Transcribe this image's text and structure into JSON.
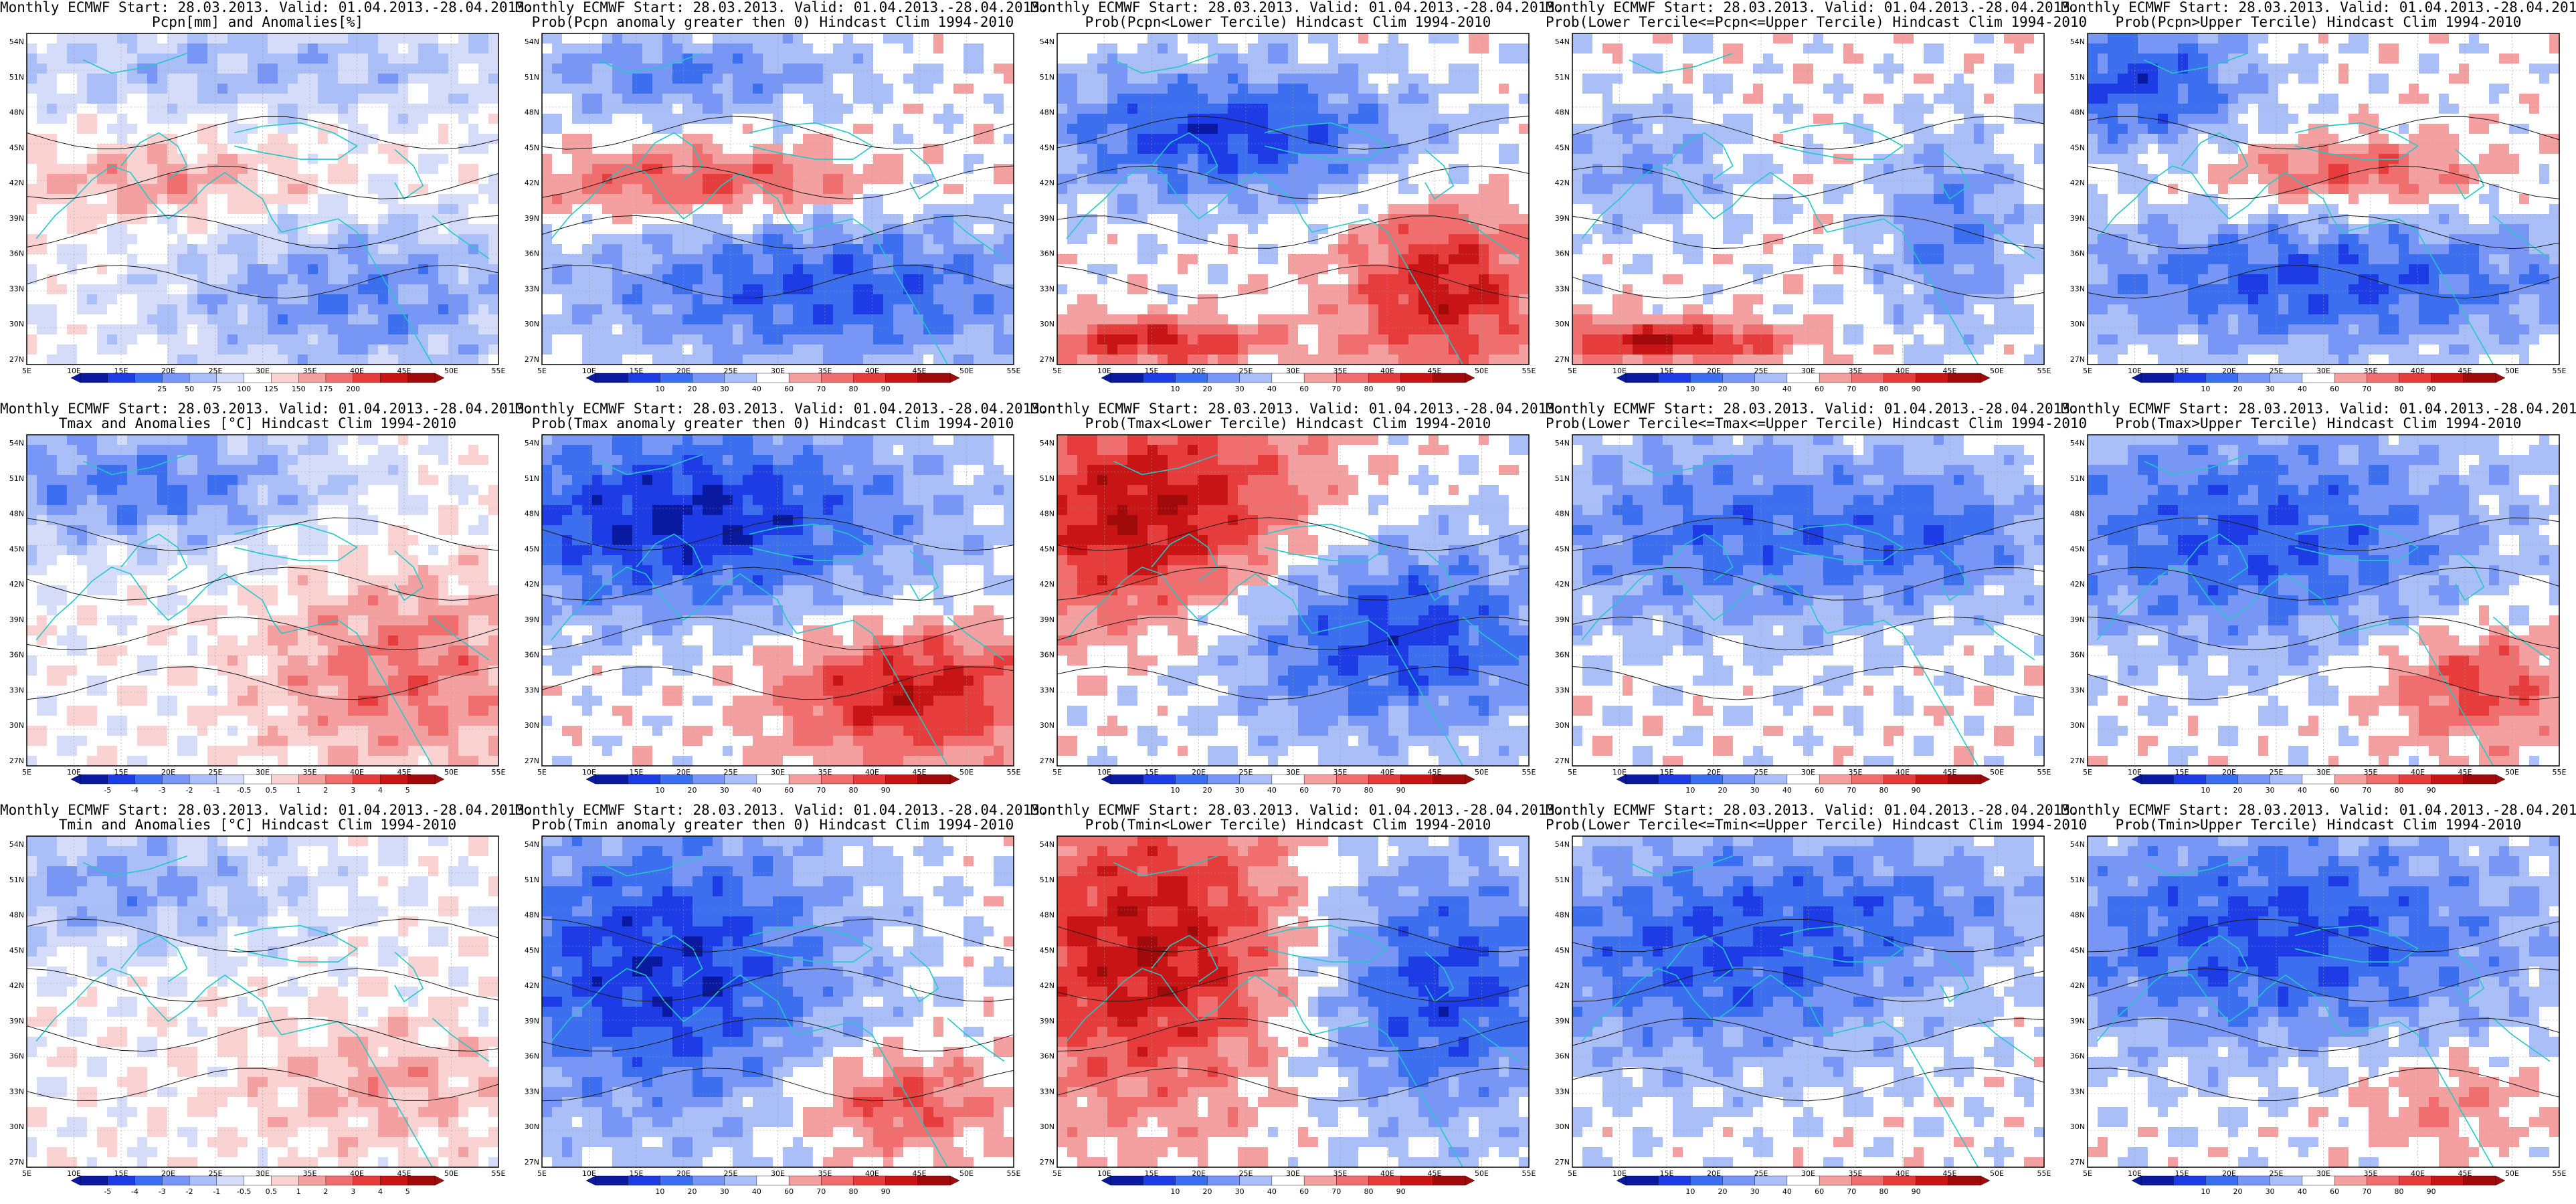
{
  "figure": {
    "prefix": "Monthly ECMWF Start: 28.03.2013. Valid: 01.04.2013.-28.04.2013."
  },
  "axes": {
    "lat_labels": [
      "54N",
      "51N",
      "48N",
      "45N",
      "42N",
      "39N",
      "36N",
      "33N",
      "30N",
      "27N"
    ],
    "lon_labels": [
      "5E",
      "10E",
      "15E",
      "20E",
      "25E",
      "30E",
      "35E",
      "40E",
      "45E",
      "50E",
      "55E"
    ]
  },
  "colorbars": {
    "pcpn_anom": {
      "ticks": [
        "25",
        "50",
        "75",
        "100",
        "125",
        "150",
        "175",
        "200"
      ],
      "colors": [
        "#0a1aa0",
        "#1e3ce6",
        "#3c6ef0",
        "#7896f5",
        "#aabef8",
        "#d4dcfa",
        "#ffffff",
        "#fad2d2",
        "#f5a0a0",
        "#f06e6e",
        "#e63c3c",
        "#c81414",
        "#a00a0a"
      ]
    },
    "temp_anom": {
      "ticks": [
        "-5",
        "-4",
        "-3",
        "-2",
        "-1",
        "-0.5",
        "0.5",
        "1",
        "2",
        "3",
        "4",
        "5"
      ],
      "colors": [
        "#0a1aa0",
        "#1e3ce6",
        "#3c6ef0",
        "#7896f5",
        "#aabef8",
        "#d4dcfa",
        "#ffffff",
        "#fad2d2",
        "#f5a0a0",
        "#f06e6e",
        "#e63c3c",
        "#c81414",
        "#a00a0a"
      ]
    },
    "prob": {
      "ticks": [
        "10",
        "20",
        "30",
        "40",
        "60",
        "70",
        "80",
        "90"
      ],
      "colors": [
        "#0a1aa0",
        "#1e3ce6",
        "#3c6ef0",
        "#7896f5",
        "#aabef8",
        "#ffffff",
        "#f5a0a0",
        "#f06e6e",
        "#e63c3c",
        "#c81414",
        "#a00a0a"
      ]
    }
  },
  "panels": [
    {
      "line1_suffix": "",
      "line2": "Pcpn[mm] and Anomalies[%]",
      "cbar": "pcpn_anom",
      "field": "pcpn_anom"
    },
    {
      "line1_suffix": "",
      "line2": "Prob(Pcpn anomaly greater then 0) Hindcast Clim 1994-2010",
      "cbar": "prob",
      "field": "pcpn_pos"
    },
    {
      "line1_suffix": "",
      "line2": "Prob(Pcpn<Lower Tercile) Hindcast Clim 1994-2010",
      "cbar": "prob",
      "field": "pcpn_lower"
    },
    {
      "line1_suffix": "",
      "line2": "Prob(Lower Tercile<=Pcpn<=Upper Tercile) Hindcast Clim 1994-2010",
      "cbar": "prob",
      "field": "pcpn_mid"
    },
    {
      "line1_suffix": "",
      "line2": "Prob(Pcpn>Upper Tercile) Hindcast Clim 1994-2010",
      "cbar": "prob",
      "field": "pcpn_upper"
    },
    {
      "line1_suffix": "",
      "line2": "Tmax and Anomalies [°C] Hindcast Clim 1994-2010",
      "cbar": "temp_anom",
      "field": "tmax_anom"
    },
    {
      "line1_suffix": "",
      "line2": "Prob(Tmax anomaly greater then 0) Hindcast Clim 1994-2010",
      "cbar": "prob",
      "field": "tmax_pos"
    },
    {
      "line1_suffix": "",
      "line2": "Prob(Tmax<Lower Tercile) Hindcast Clim 1994-2010",
      "cbar": "prob",
      "field": "tmax_lower"
    },
    {
      "line1_suffix": "",
      "line2": "Prob(Lower Tercile<=Tmax<=Upper Tercile) Hindcast Clim 1994-2010",
      "cbar": "prob",
      "field": "tmax_mid"
    },
    {
      "line1_suffix": "",
      "line2": "Prob(Tmax>Upper Tercile) Hindcast Clim 1994-2010",
      "cbar": "prob",
      "field": "tmax_upper"
    },
    {
      "line1_suffix": "",
      "line2": "Tmin and Anomalies [°C] Hindcast Clim 1994-2010",
      "cbar": "temp_anom",
      "field": "tmin_anom"
    },
    {
      "line1_suffix": "",
      "line2": "Prob(Tmin anomaly greater then 0) Hindcast Clim 1994-2010",
      "cbar": "prob",
      "field": "tmin_pos"
    },
    {
      "line1_suffix": "",
      "line2": "Prob(Tmin<Lower Tercile) Hindcast Clim 1994-2010",
      "cbar": "prob",
      "field": "tmin_lower"
    },
    {
      "line1_suffix": "",
      "line2": "Prob(Lower Tercile<=Tmin<=Upper Tercile) Hindcast Clim 1994-2010",
      "cbar": "prob",
      "field": "tmin_mid"
    },
    {
      "line1_suffix": "",
      "line2": "Prob(Tmin>Upper Tercile) Hindcast Clim 1994-2010",
      "cbar": "prob",
      "field": "tmin_upper"
    }
  ]
}
